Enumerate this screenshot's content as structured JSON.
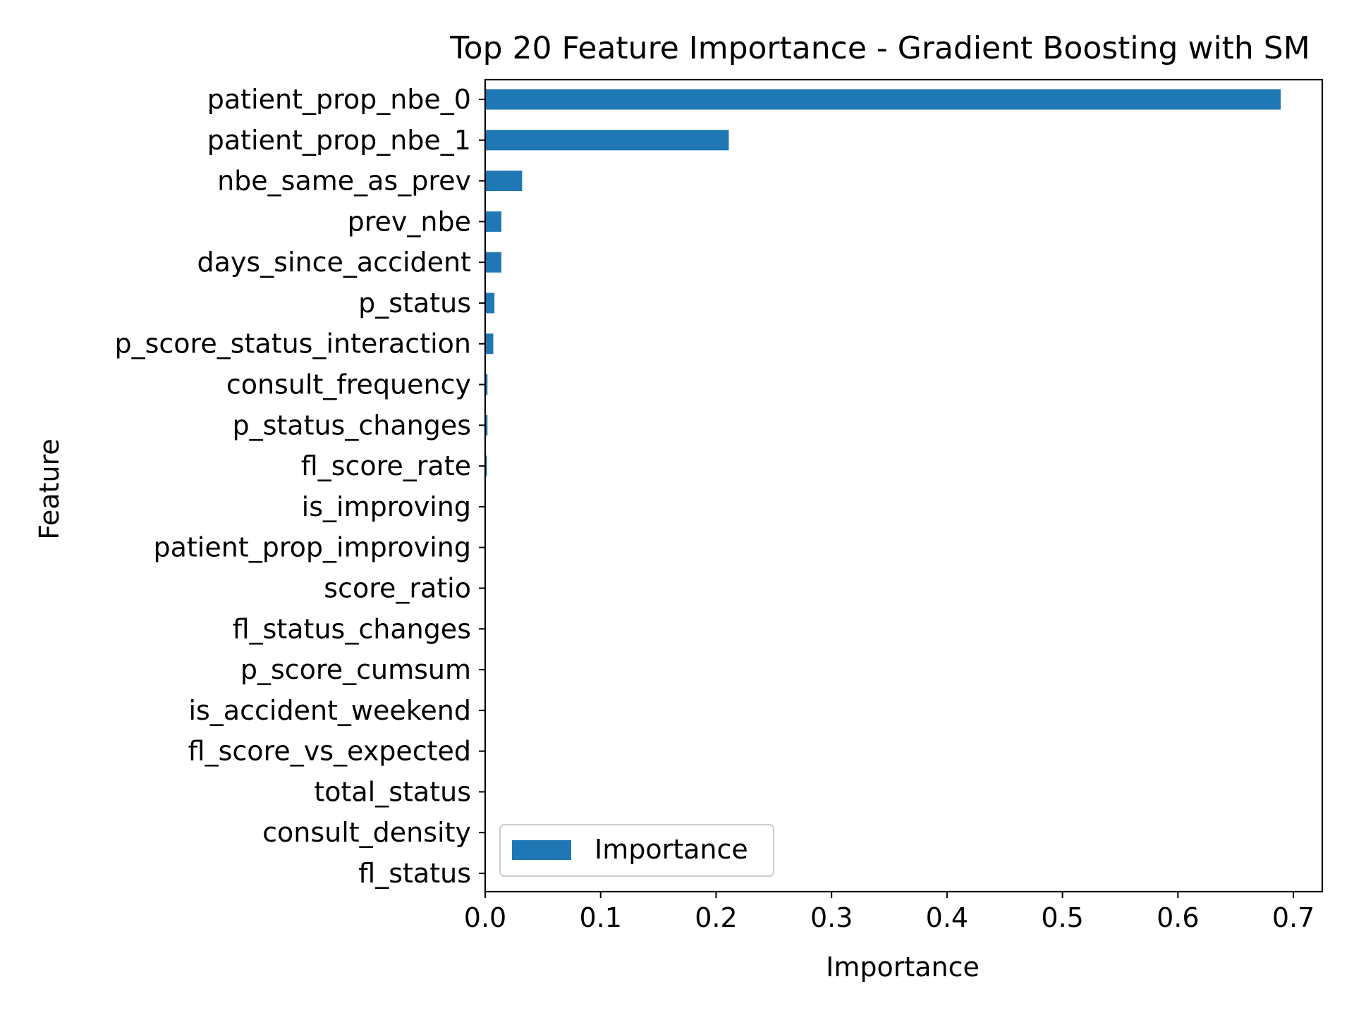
{
  "chart_data": {
    "type": "bar",
    "orientation": "horizontal",
    "title": "Top 20 Feature Importance - Gradient Boosting with SM",
    "xlabel": "Importance",
    "ylabel": "Feature",
    "xlim": [
      0,
      0.725
    ],
    "xticks": [
      0.0,
      0.1,
      0.2,
      0.3,
      0.4,
      0.5,
      0.6,
      0.7
    ],
    "xtick_labels": [
      "0.0",
      "0.1",
      "0.2",
      "0.3",
      "0.4",
      "0.5",
      "0.6",
      "0.7"
    ],
    "grid": false,
    "legend": {
      "position": "lower-left",
      "entries": [
        "Importance"
      ]
    },
    "series_color": "#1f77b4",
    "categories": [
      "patient_prop_nbe_0",
      "patient_prop_nbe_1",
      "nbe_same_as_prev",
      "prev_nbe",
      "days_since_accident",
      "p_status",
      "p_score_status_interaction",
      "consult_frequency",
      "p_status_changes",
      "fl_score_rate",
      "is_improving",
      "patient_prop_improving",
      "score_ratio",
      "fl_status_changes",
      "p_score_cumsum",
      "is_accident_weekend",
      "fl_score_vs_expected",
      "total_status",
      "consult_density",
      "fl_status"
    ],
    "series": [
      {
        "name": "Importance",
        "values": [
          0.689,
          0.211,
          0.032,
          0.014,
          0.014,
          0.008,
          0.007,
          0.002,
          0.002,
          0.0015,
          0.0005,
          0.0004,
          0.0003,
          0.0003,
          0.0002,
          0.0002,
          0.0001,
          0.0001,
          0.0001,
          0.0001
        ]
      }
    ]
  }
}
